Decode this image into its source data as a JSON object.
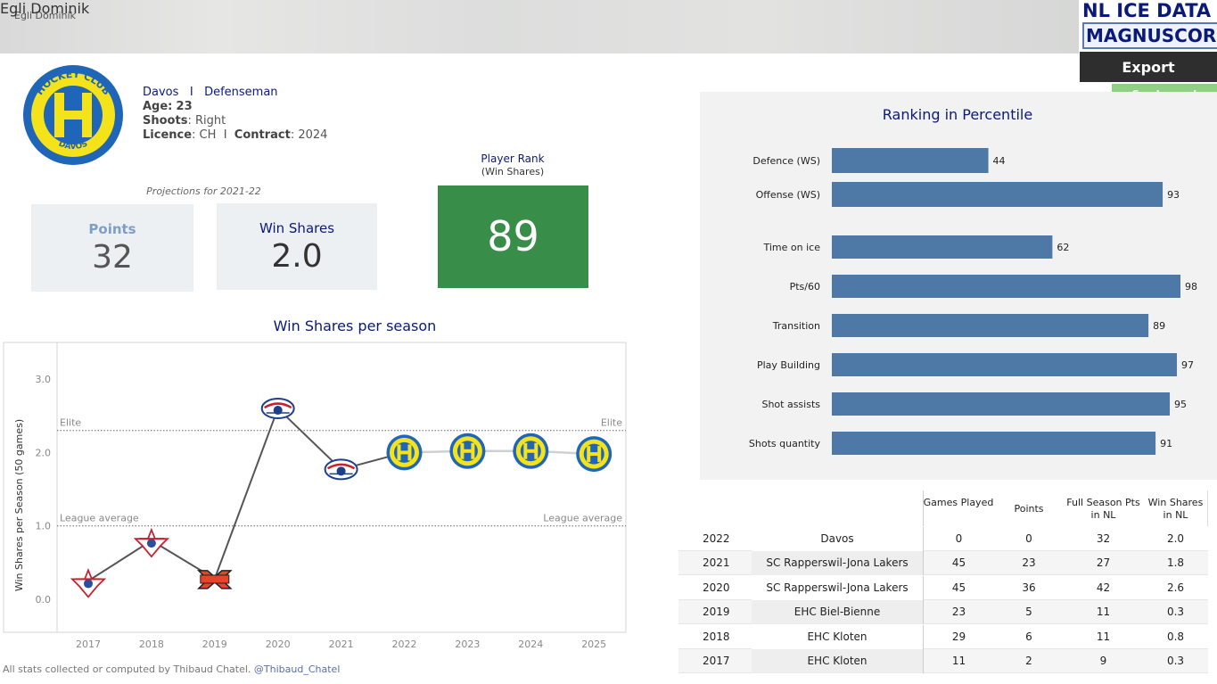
{
  "header": {
    "small_title": "Egli Dominik",
    "title": "Egli Dominik",
    "logo_line1": "NL ICE DATA",
    "logo_line2": "MAGNUSCORSI",
    "export_label": "Export",
    "legend_label": "See Legend"
  },
  "player": {
    "club": "Davos",
    "separator": "I",
    "position": "Defenseman",
    "age_label": "Age:",
    "age": "23",
    "shoots_label": "Shoots",
    "shoots": ": Right",
    "licence_label": "Licence",
    "licence": ": CH",
    "contract_label": "Contract",
    "contract": ": 2024",
    "club_logo_top": "HOCKEY CLUB",
    "club_logo_bottom": "DAVOS"
  },
  "projections": {
    "label": "Projections for 2021-22",
    "points_label": "Points",
    "points": "32",
    "ws_label": "Win Shares",
    "ws": "2.0"
  },
  "rank": {
    "title": "Player Rank",
    "subtitle": "(Win Shares)",
    "value": "89"
  },
  "colors": {
    "navy": "#0b1a78",
    "bar": "#4e79a7",
    "rank_green": "#388e48",
    "legend_green": "#8fd084"
  },
  "footer": {
    "text": "All stats collected or computed by Thibaud Chatel.",
    "handle": "@Thibaud_Chatel"
  },
  "chart_data": [
    {
      "type": "line",
      "title": "Win Shares per season",
      "ylabel": "Win Shares per Season (50 games)",
      "xlabel": "",
      "x": [
        "2017",
        "2018",
        "2019",
        "2020",
        "2021",
        "2022",
        "2023",
        "2024",
        "2025"
      ],
      "series": [
        {
          "values": [
            0.25,
            0.8,
            0.28,
            2.6,
            1.77,
            2.0,
            2.02,
            2.02,
            1.98
          ],
          "projected_from_index": 5
        }
      ],
      "point_logos": [
        "ehc-kloten-logo",
        "ehc-kloten-logo",
        "ehc-biel-logo",
        "scrj-lakers-logo",
        "scrj-lakers-logo",
        "hc-davos-logo",
        "hc-davos-logo",
        "hc-davos-logo",
        "hc-davos-logo"
      ],
      "yticks": [
        "0.0",
        "1.0",
        "2.0",
        "3.0"
      ],
      "ylim": [
        -0.45,
        3.5
      ],
      "reference_lines": [
        {
          "label": "Elite",
          "value": 2.3
        },
        {
          "label": "League average",
          "value": 1.0
        }
      ],
      "grid": false
    },
    {
      "type": "bar",
      "orientation": "horizontal",
      "title": "Ranking in Percentile",
      "categories": [
        "Defence (WS)",
        "Offense (WS)",
        "Time on ice",
        "Pts/60",
        "Transition",
        "Play Building",
        "Shot assists",
        "Shots quantity"
      ],
      "values": [
        44,
        93,
        62,
        98,
        89,
        97,
        95,
        91
      ],
      "xlim": [
        0,
        100
      ]
    },
    {
      "type": "table",
      "columns": [
        "",
        "",
        "Games Played",
        "Points",
        "Full Season Pts in NL",
        "Win Shares in NL"
      ],
      "rows": [
        [
          "2022",
          "Davos",
          "0",
          "0",
          "32",
          "2.0"
        ],
        [
          "2021",
          "SC Rapperswil-Jona Lakers",
          "45",
          "23",
          "27",
          "1.8"
        ],
        [
          "2020",
          "SC Rapperswil-Jona Lakers",
          "45",
          "36",
          "42",
          "2.6"
        ],
        [
          "2019",
          "EHC Biel-Bienne",
          "23",
          "5",
          "11",
          "0.3"
        ],
        [
          "2018",
          "EHC Kloten",
          "29",
          "6",
          "11",
          "0.8"
        ],
        [
          "2017",
          "EHC Kloten",
          "11",
          "2",
          "9",
          "0.3"
        ]
      ]
    }
  ]
}
